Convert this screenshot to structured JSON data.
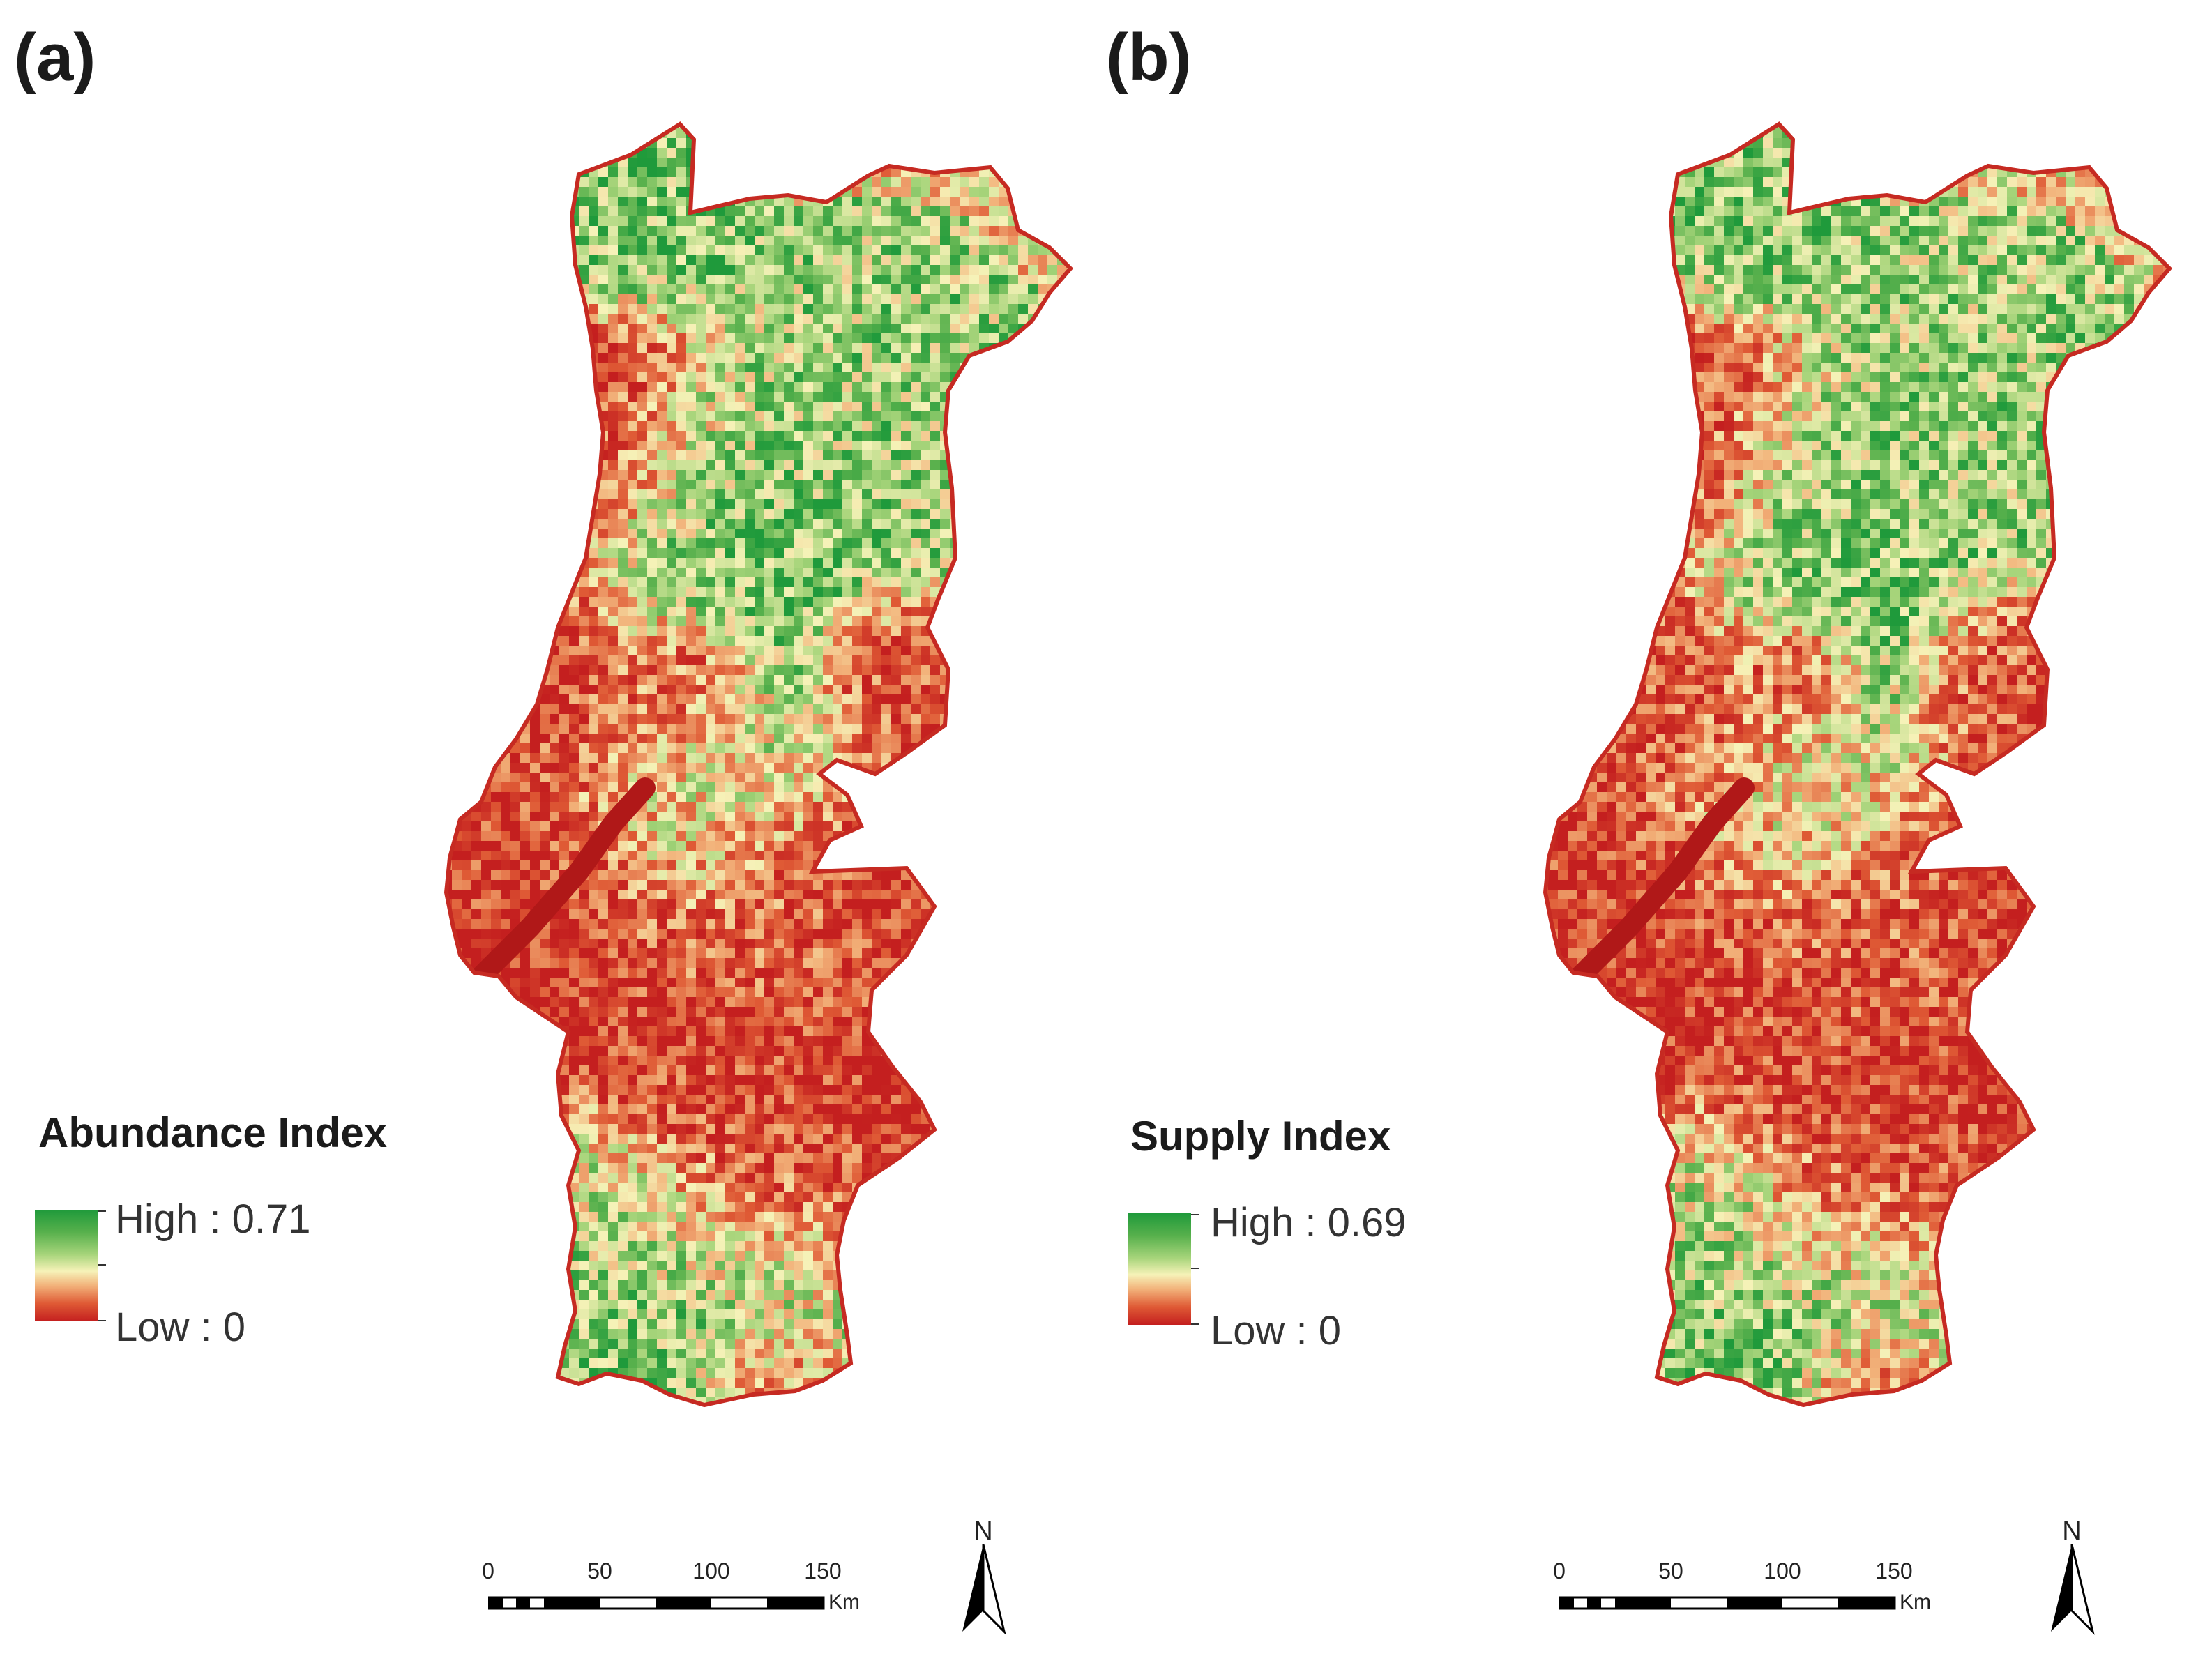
{
  "panels": [
    {
      "label": "(a)",
      "legend": {
        "title": "Abundance Index",
        "high_label": "High : 0.71",
        "low_label": "Low : 0",
        "high_value": 0.71,
        "low_value": 0
      },
      "seed": 11
    },
    {
      "label": "(b)",
      "legend": {
        "title": "Supply Index",
        "high_label": "High : 0.69",
        "low_label": "Low : 0",
        "high_value": 0.69,
        "low_value": 0
      },
      "seed": 29
    }
  ],
  "scalebar": {
    "ticks": [
      "0",
      "50",
      "100",
      "150"
    ],
    "unit": "Km"
  },
  "north_arrow": {
    "letter": "N",
    "icon": "north-arrow-icon"
  },
  "colors": {
    "high": "#1f9a3b",
    "mid": "#f6f2b8",
    "low": "#c41f1f"
  }
}
